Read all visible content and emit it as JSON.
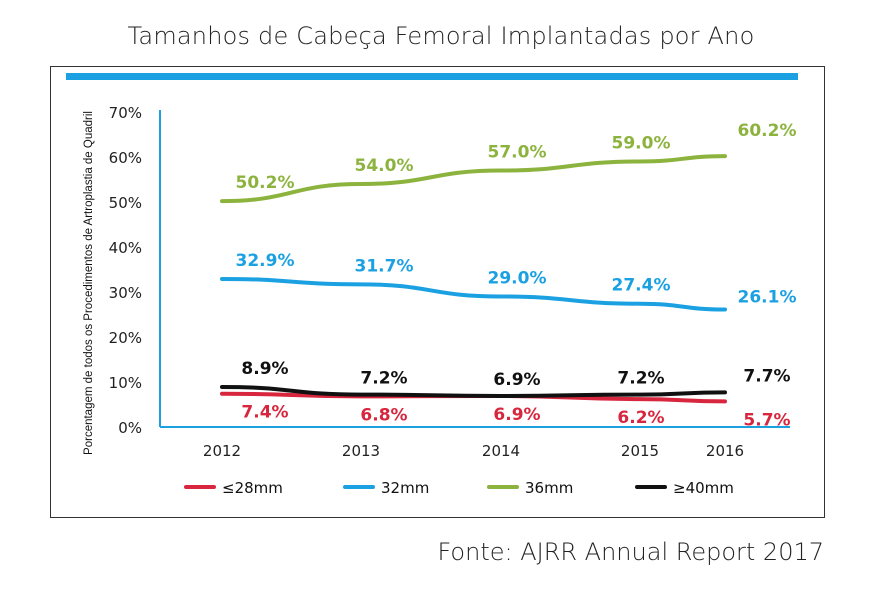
{
  "title": "Tamanhos de Cabeça Femoral Implantadas por Ano",
  "source": "Fonte: AJRR Annual Report 2017",
  "colors": {
    "accent_bar": "#1ba1e2",
    "axis": "#1ba1e2"
  },
  "chart_data": {
    "type": "line",
    "title": "Tamanhos de Cabeça Femoral Implantadas por Ano",
    "xlabel": "",
    "ylabel": "Porcentagem de todos os Procedimentos de Artroplastia de Quadril",
    "x": [
      "2012",
      "2013",
      "2014",
      "2015",
      "2016"
    ],
    "ylim": [
      0,
      70
    ],
    "yticks": [
      0,
      10,
      20,
      30,
      40,
      50,
      60,
      70
    ],
    "ytick_labels": [
      "0%",
      "10%",
      "20%",
      "30%",
      "40%",
      "50%",
      "60%",
      "70%"
    ],
    "grid": false,
    "legend_position": "bottom",
    "series": [
      {
        "name": "≤28mm",
        "color": "#d7263d",
        "values": [
          7.4,
          6.8,
          6.9,
          6.2,
          5.7
        ],
        "labels": [
          "7.4%",
          "6.8%",
          "6.9%",
          "6.2%",
          "5.7%"
        ],
        "label_side": "below"
      },
      {
        "name": "32mm",
        "color": "#1ba1e2",
        "values": [
          32.9,
          31.7,
          29.0,
          27.4,
          26.1
        ],
        "labels": [
          "32.9%",
          "31.7%",
          "29.0%",
          "27.4%",
          "26.1%"
        ],
        "label_side": "above"
      },
      {
        "name": "36mm",
        "color": "#8cb33e",
        "values": [
          50.2,
          54.0,
          57.0,
          59.0,
          60.2
        ],
        "labels": [
          "50.2%",
          "54.0%",
          "57.0%",
          "59.0%",
          "60.2%"
        ],
        "label_side": "above"
      },
      {
        "name": "≥40mm",
        "color": "#111111",
        "values": [
          8.9,
          7.2,
          6.9,
          7.2,
          7.7
        ],
        "labels": [
          "8.9%",
          "7.2%",
          "6.9%",
          "7.2%",
          "7.7%"
        ],
        "label_side": "above"
      }
    ]
  }
}
